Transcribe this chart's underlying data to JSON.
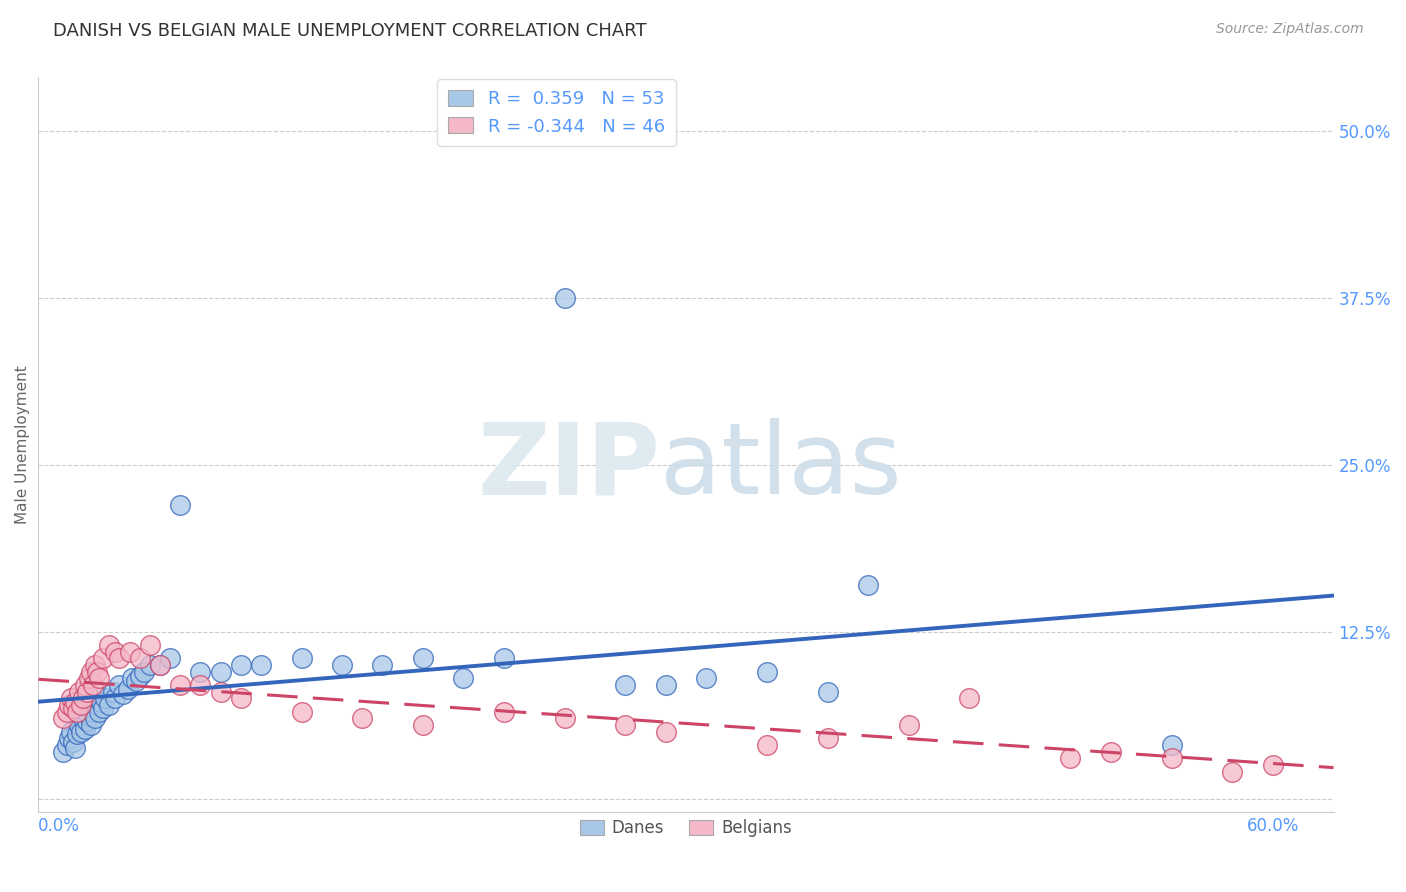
{
  "title": "DANISH VS BELGIAN MALE UNEMPLOYMENT CORRELATION CHART",
  "source": "Source: ZipAtlas.com",
  "ylabel_label": "Male Unemployment",
  "xlim": [
    -0.01,
    0.63
  ],
  "ylim": [
    -0.01,
    0.54
  ],
  "danes_R": 0.359,
  "danes_N": 53,
  "belgians_R": -0.344,
  "belgians_N": 46,
  "danes_color": "#a8c8e8",
  "belgians_color": "#f4b8c8",
  "danes_line_color": "#3366bb",
  "belgians_line_color": "#cc4466",
  "background_color": "#ffffff",
  "grid_color": "#cccccc",
  "tick_color": "#5599ff",
  "danes_x": [
    0.002,
    0.004,
    0.005,
    0.006,
    0.007,
    0.008,
    0.009,
    0.01,
    0.011,
    0.012,
    0.013,
    0.014,
    0.015,
    0.016,
    0.017,
    0.018,
    0.019,
    0.02,
    0.021,
    0.022,
    0.023,
    0.025,
    0.027,
    0.028,
    0.03,
    0.032,
    0.034,
    0.036,
    0.038,
    0.04,
    0.042,
    0.045,
    0.05,
    0.055,
    0.06,
    0.07,
    0.08,
    0.09,
    0.1,
    0.12,
    0.14,
    0.16,
    0.18,
    0.2,
    0.22,
    0.25,
    0.28,
    0.3,
    0.32,
    0.35,
    0.38,
    0.4,
    0.55
  ],
  "danes_y": [
    0.035,
    0.04,
    0.045,
    0.05,
    0.042,
    0.038,
    0.048,
    0.055,
    0.05,
    0.06,
    0.052,
    0.058,
    0.062,
    0.055,
    0.065,
    0.06,
    0.07,
    0.065,
    0.072,
    0.068,
    0.075,
    0.07,
    0.08,
    0.075,
    0.085,
    0.078,
    0.082,
    0.09,
    0.088,
    0.092,
    0.095,
    0.1,
    0.1,
    0.105,
    0.22,
    0.095,
    0.095,
    0.1,
    0.1,
    0.105,
    0.1,
    0.1,
    0.105,
    0.09,
    0.105,
    0.375,
    0.085,
    0.085,
    0.09,
    0.095,
    0.08,
    0.16,
    0.04
  ],
  "belgians_x": [
    0.002,
    0.004,
    0.005,
    0.006,
    0.007,
    0.008,
    0.009,
    0.01,
    0.011,
    0.012,
    0.013,
    0.014,
    0.015,
    0.016,
    0.017,
    0.018,
    0.019,
    0.02,
    0.022,
    0.025,
    0.028,
    0.03,
    0.035,
    0.04,
    0.045,
    0.05,
    0.06,
    0.07,
    0.08,
    0.09,
    0.12,
    0.15,
    0.18,
    0.22,
    0.25,
    0.28,
    0.3,
    0.35,
    0.38,
    0.42,
    0.45,
    0.5,
    0.52,
    0.55,
    0.58,
    0.6
  ],
  "belgians_y": [
    0.06,
    0.065,
    0.07,
    0.075,
    0.068,
    0.072,
    0.065,
    0.08,
    0.07,
    0.075,
    0.085,
    0.08,
    0.09,
    0.095,
    0.085,
    0.1,
    0.095,
    0.09,
    0.105,
    0.115,
    0.11,
    0.105,
    0.11,
    0.105,
    0.115,
    0.1,
    0.085,
    0.085,
    0.08,
    0.075,
    0.065,
    0.06,
    0.055,
    0.065,
    0.06,
    0.055,
    0.05,
    0.04,
    0.045,
    0.055,
    0.075,
    0.03,
    0.035,
    0.03,
    0.02,
    0.025
  ]
}
